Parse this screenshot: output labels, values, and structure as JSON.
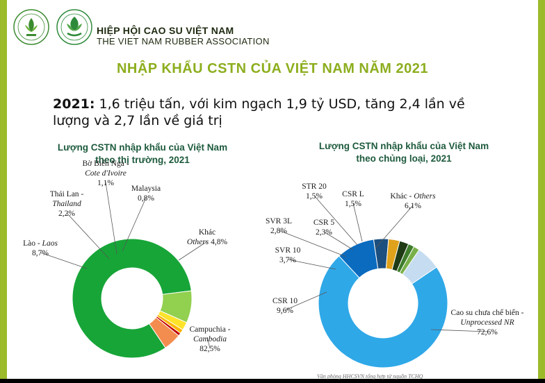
{
  "header": {
    "org_name_vi": "HIỆP HỘI CAO SU VIỆT NAM",
    "org_name_en": "THE VIET NAM RUBBER ASSOCIATION"
  },
  "slide": {
    "title": "NHẬP KHẨU CSTN CỦA VIỆT NAM NĂM 2021",
    "summary_year": "2021:",
    "summary_text": " 1,6 triệu tấn, với kim ngạch 1,9 tỷ USD, tăng 2,4 lần về lượng và 2,7 lần về giá trị",
    "source_note": "Văn phòng HHCSVN tổng hợp từ nguồn TCHQ"
  },
  "colors": {
    "accent_green": "#8dae1e",
    "frame_green": "#9bbb2a",
    "chart_title": "#1d5a3d"
  },
  "chart_data": [
    {
      "type": "pie",
      "variant": "donut",
      "title": "Lượng CSTN nhập khẩu của Việt Nam theo thị trường, 2021",
      "title_lines": [
        "Lượng CSTN nhập khẩu của Việt Nam",
        "theo thị trường, 2021"
      ],
      "slices": [
        {
          "label_vi": "Campuchia",
          "label_en": "Cambodia",
          "value_text": "82,5%",
          "value": 82.5,
          "color": "#17a538"
        },
        {
          "label_vi": "Lào",
          "label_en": "Laos",
          "value_text": "8,7%",
          "value": 8.7,
          "color": "#92d050"
        },
        {
          "label_vi": "Thái Lan",
          "label_en": "Thailand",
          "value_text": "2,2%",
          "value": 2.2,
          "color": "#ffe32a"
        },
        {
          "label_vi": "Bờ Biển Ngà",
          "label_en": "Cote d'Ivoire",
          "value_text": "1,1%",
          "value": 1.1,
          "color": "#ffb400"
        },
        {
          "label_vi": "Malaysia",
          "label_en": "",
          "value_text": "0,8%",
          "value": 0.8,
          "color": "#c00000"
        },
        {
          "label_vi": "Khác",
          "label_en": "Others",
          "value_text": "4,8%",
          "value": 4.8,
          "color": "#f38d4f"
        }
      ]
    },
    {
      "type": "pie",
      "variant": "donut",
      "title": "Lượng CSTN nhập khẩu của Việt Nam theo chủng loại, 2021",
      "title_lines": [
        "Lượng CSTN nhập khẩu của Việt Nam",
        "theo chủng loại, 2021"
      ],
      "slices": [
        {
          "label_vi": "Cao su chưa chế biến",
          "label_en": "Unprocessed NR",
          "value_text": "72,6%",
          "value": 72.6,
          "color": "#2fa8e8"
        },
        {
          "label_vi": "CSR 10",
          "label_en": "",
          "value_text": "9,6%",
          "value": 9.6,
          "color": "#0a6bbf"
        },
        {
          "label_vi": "SVR 10",
          "label_en": "",
          "value_text": "3,7%",
          "value": 3.7,
          "color": "#1b4f7f"
        },
        {
          "label_vi": "SVR 3L",
          "label_en": "",
          "value_text": "2,8%",
          "value": 2.8,
          "color": "#e0a21a"
        },
        {
          "label_vi": "CSR 5",
          "label_en": "",
          "value_text": "2,3%",
          "value": 2.3,
          "color": "#1f3b16"
        },
        {
          "label_vi": "STR 20",
          "label_en": "",
          "value_text": "1,5%",
          "value": 1.5,
          "color": "#3e7d2c"
        },
        {
          "label_vi": "CSR L",
          "label_en": "",
          "value_text": "1,5%",
          "value": 1.5,
          "color": "#79b04a"
        },
        {
          "label_vi": "Khác",
          "label_en": "Others",
          "value_text": "6,1%",
          "value": 6.1,
          "color": "#c6dcf0"
        }
      ]
    }
  ]
}
